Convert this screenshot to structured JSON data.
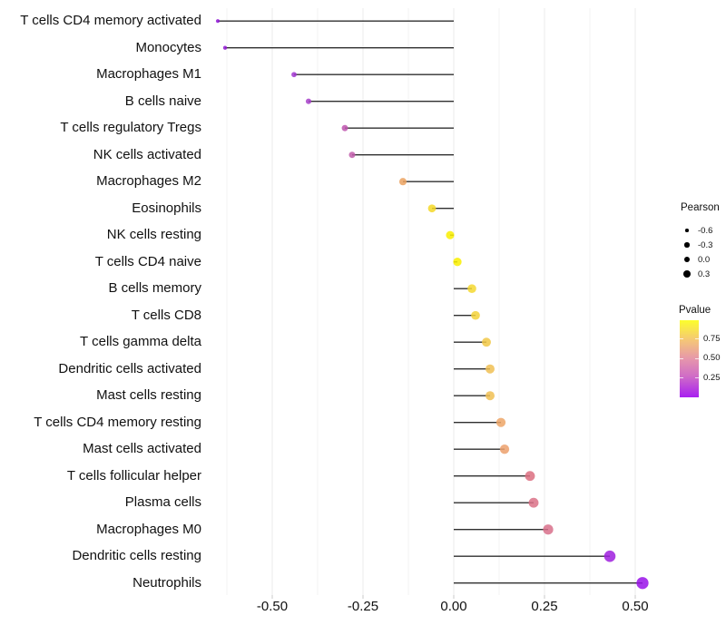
{
  "chart_data": {
    "type": "lollipop",
    "title": "",
    "xlabel": "",
    "ylabel": "",
    "grid": "on",
    "legend_position": "right",
    "rows": [
      {
        "label": "T cells CD4 memory activated",
        "pearson": -0.65,
        "pvalue": 0.03,
        "color": "#8E14D6"
      },
      {
        "label": "Monocytes",
        "pearson": -0.63,
        "pvalue": 0.04,
        "color": "#9118D2"
      },
      {
        "label": "Macrophages M1",
        "pearson": -0.44,
        "pvalue": 0.1,
        "color": "#A136D0"
      },
      {
        "label": "B cells naive",
        "pearson": -0.4,
        "pvalue": 0.12,
        "color": "#A63FC9"
      },
      {
        "label": "T cells regulatory  Tregs",
        "pearson": -0.3,
        "pvalue": 0.2,
        "color": "#BE54AE"
      },
      {
        "label": "NK cells activated",
        "pearson": -0.28,
        "pvalue": 0.22,
        "color": "#C15CAA"
      },
      {
        "label": "Macrophages M2",
        "pearson": -0.14,
        "pvalue": 0.7,
        "color": "#EBA260"
      },
      {
        "label": "Eosinophils",
        "pearson": -0.06,
        "pvalue": 0.87,
        "color": "#F4D827"
      },
      {
        "label": "NK cells resting",
        "pearson": -0.01,
        "pvalue": 0.97,
        "color": "#F9EE00"
      },
      {
        "label": "T cells CD4 naive",
        "pearson": 0.01,
        "pvalue": 0.96,
        "color": "#F9EE00"
      },
      {
        "label": "B cells memory",
        "pearson": 0.05,
        "pvalue": 0.88,
        "color": "#F4D830"
      },
      {
        "label": "T cells CD8",
        "pearson": 0.06,
        "pvalue": 0.86,
        "color": "#F3D23A"
      },
      {
        "label": "T cells gamma delta",
        "pearson": 0.09,
        "pvalue": 0.83,
        "color": "#F1C847"
      },
      {
        "label": "Dendritic cells activated",
        "pearson": 0.1,
        "pvalue": 0.8,
        "color": "#F0C053"
      },
      {
        "label": "Mast cells resting",
        "pearson": 0.1,
        "pvalue": 0.8,
        "color": "#F0C053"
      },
      {
        "label": "T cells CD4 memory resting",
        "pearson": 0.13,
        "pvalue": 0.71,
        "color": "#EDA667"
      },
      {
        "label": "Mast cells activated",
        "pearson": 0.14,
        "pvalue": 0.69,
        "color": "#ECA06C"
      },
      {
        "label": "T cells follicular helper",
        "pearson": 0.21,
        "pvalue": 0.44,
        "color": "#DC6F80"
      },
      {
        "label": "Plasma cells",
        "pearson": 0.22,
        "pvalue": 0.46,
        "color": "#DA7187"
      },
      {
        "label": "Macrophages M0",
        "pearson": 0.26,
        "pvalue": 0.47,
        "color": "#D8708B"
      },
      {
        "label": "Dendritic cells resting",
        "pearson": 0.43,
        "pvalue": 0.07,
        "color": "#9F1FDE"
      },
      {
        "label": "Neutrophils",
        "pearson": 0.52,
        "pvalue": 0.05,
        "color": "#9910E9"
      }
    ],
    "x_axis": {
      "tick_labels": [
        "-0.50",
        "-0.25",
        "0.00",
        "0.25",
        "0.50"
      ],
      "tick_values": [
        -0.5,
        -0.25,
        0.0,
        0.25,
        0.5
      ],
      "minor_tick_values": [
        -0.625,
        -0.375,
        -0.125,
        0.125,
        0.375
      ],
      "range": [
        -0.7,
        0.575
      ]
    },
    "legends": {
      "size": {
        "title": "Pearson",
        "entries": [
          {
            "label": "-0.6",
            "r": 1.8
          },
          {
            "label": "-0.3",
            "r": 2.7
          },
          {
            "label": "0.0",
            "r": 3.4
          },
          {
            "label": "0.3",
            "r": 3.9
          }
        ]
      },
      "color": {
        "title": "Pvalue",
        "tick_labels": [
          "0.75",
          "0.50",
          "0.25"
        ],
        "gradient_top_to_bottom": [
          "#FCFE2C",
          "#F4C47A",
          "#E697AB",
          "#CF6CC7",
          "#A81FF0"
        ],
        "gradient_stops_pct": [
          0,
          27,
          50,
          73,
          100
        ]
      }
    },
    "style_colors": {
      "stem": "#2F2F2F",
      "grid_major": "#EBEBEB",
      "grid_minor": "#F3F3F3",
      "axis_tick": "#C9C9C9",
      "text": "#111111",
      "legend_dot": "#000000",
      "background": "#FFFFFF"
    }
  }
}
